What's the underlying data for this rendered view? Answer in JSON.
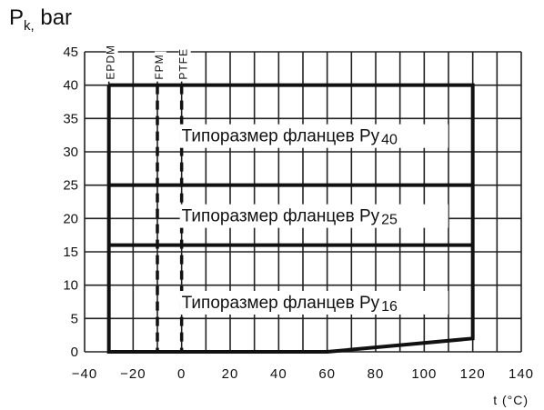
{
  "chart_data": {
    "type": "line",
    "ylabel_main": "P",
    "ylabel_sub": "k,",
    "ylabel_unit": "bar",
    "xlabel": "t (°C)",
    "xlim": [
      -40,
      140
    ],
    "ylim": [
      0,
      45
    ],
    "x_ticks": [
      -40,
      -20,
      0,
      20,
      40,
      60,
      80,
      100,
      120,
      140
    ],
    "y_ticks": [
      0,
      5,
      10,
      15,
      20,
      25,
      30,
      35,
      40,
      45
    ],
    "minor_x_step": 10,
    "grid": true,
    "materials": [
      {
        "name": "EPDM",
        "x": -30,
        "style": "solid"
      },
      {
        "name": "FPM",
        "x": -10,
        "style": "dashed"
      },
      {
        "name": "PTFE",
        "x": 0,
        "style": "dashed"
      }
    ],
    "pressure_levels": [
      {
        "label": "Типоразмер фланцев Py",
        "sub": "40",
        "y": 40,
        "label_x": 0,
        "label_y": 32.5
      },
      {
        "label": "Типоразмер фланцев Py",
        "sub": "25",
        "y": 25,
        "label_x": 0,
        "label_y": 20.5
      },
      {
        "label": "Типоразмер фланцев Py",
        "sub": "16",
        "y": 16,
        "label_x": 0,
        "label_y": 7.5
      }
    ],
    "series": [
      {
        "x": [
          -30,
          120,
          120,
          60,
          -30,
          -30
        ],
        "y": [
          40,
          40,
          2,
          0,
          0,
          40
        ]
      },
      {
        "x": [
          -30,
          120
        ],
        "y": [
          25,
          25
        ]
      },
      {
        "x": [
          -30,
          120
        ],
        "y": [
          16,
          16
        ]
      }
    ]
  }
}
